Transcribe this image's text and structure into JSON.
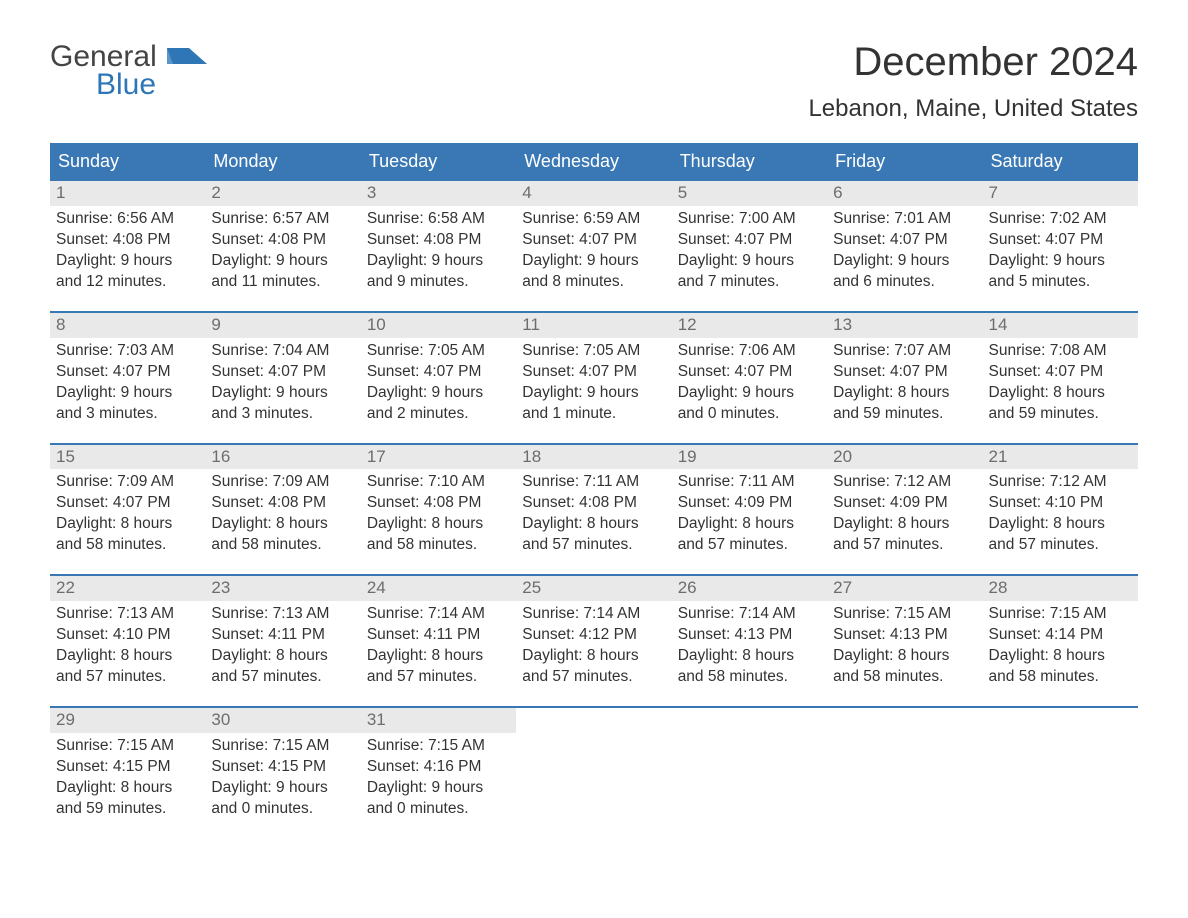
{
  "logo": {
    "top": "General",
    "bottom": "Blue",
    "top_color": "#444444",
    "bottom_color": "#2e76b6"
  },
  "title": "December 2024",
  "location": "Lebanon, Maine, United States",
  "colors": {
    "header_bg": "#3a78b5",
    "header_text": "#ffffff",
    "daynum_bg": "#e9e9e9",
    "daynum_text": "#6d6d6d",
    "rule": "#3a78b5",
    "body_text": "#333333",
    "background": "#ffffff"
  },
  "typography": {
    "title_fontsize": 40,
    "location_fontsize": 24,
    "dayname_fontsize": 18,
    "body_fontsize": 15.5
  },
  "day_names": [
    "Sunday",
    "Monday",
    "Tuesday",
    "Wednesday",
    "Thursday",
    "Friday",
    "Saturday"
  ],
  "weeks": [
    [
      {
        "n": "1",
        "sr": "Sunrise: 6:56 AM",
        "ss": "Sunset: 4:08 PM",
        "d1": "Daylight: 9 hours",
        "d2": "and 12 minutes."
      },
      {
        "n": "2",
        "sr": "Sunrise: 6:57 AM",
        "ss": "Sunset: 4:08 PM",
        "d1": "Daylight: 9 hours",
        "d2": "and 11 minutes."
      },
      {
        "n": "3",
        "sr": "Sunrise: 6:58 AM",
        "ss": "Sunset: 4:08 PM",
        "d1": "Daylight: 9 hours",
        "d2": "and 9 minutes."
      },
      {
        "n": "4",
        "sr": "Sunrise: 6:59 AM",
        "ss": "Sunset: 4:07 PM",
        "d1": "Daylight: 9 hours",
        "d2": "and 8 minutes."
      },
      {
        "n": "5",
        "sr": "Sunrise: 7:00 AM",
        "ss": "Sunset: 4:07 PM",
        "d1": "Daylight: 9 hours",
        "d2": "and 7 minutes."
      },
      {
        "n": "6",
        "sr": "Sunrise: 7:01 AM",
        "ss": "Sunset: 4:07 PM",
        "d1": "Daylight: 9 hours",
        "d2": "and 6 minutes."
      },
      {
        "n": "7",
        "sr": "Sunrise: 7:02 AM",
        "ss": "Sunset: 4:07 PM",
        "d1": "Daylight: 9 hours",
        "d2": "and 5 minutes."
      }
    ],
    [
      {
        "n": "8",
        "sr": "Sunrise: 7:03 AM",
        "ss": "Sunset: 4:07 PM",
        "d1": "Daylight: 9 hours",
        "d2": "and 3 minutes."
      },
      {
        "n": "9",
        "sr": "Sunrise: 7:04 AM",
        "ss": "Sunset: 4:07 PM",
        "d1": "Daylight: 9 hours",
        "d2": "and 3 minutes."
      },
      {
        "n": "10",
        "sr": "Sunrise: 7:05 AM",
        "ss": "Sunset: 4:07 PM",
        "d1": "Daylight: 9 hours",
        "d2": "and 2 minutes."
      },
      {
        "n": "11",
        "sr": "Sunrise: 7:05 AM",
        "ss": "Sunset: 4:07 PM",
        "d1": "Daylight: 9 hours",
        "d2": "and 1 minute."
      },
      {
        "n": "12",
        "sr": "Sunrise: 7:06 AM",
        "ss": "Sunset: 4:07 PM",
        "d1": "Daylight: 9 hours",
        "d2": "and 0 minutes."
      },
      {
        "n": "13",
        "sr": "Sunrise: 7:07 AM",
        "ss": "Sunset: 4:07 PM",
        "d1": "Daylight: 8 hours",
        "d2": "and 59 minutes."
      },
      {
        "n": "14",
        "sr": "Sunrise: 7:08 AM",
        "ss": "Sunset: 4:07 PM",
        "d1": "Daylight: 8 hours",
        "d2": "and 59 minutes."
      }
    ],
    [
      {
        "n": "15",
        "sr": "Sunrise: 7:09 AM",
        "ss": "Sunset: 4:07 PM",
        "d1": "Daylight: 8 hours",
        "d2": "and 58 minutes."
      },
      {
        "n": "16",
        "sr": "Sunrise: 7:09 AM",
        "ss": "Sunset: 4:08 PM",
        "d1": "Daylight: 8 hours",
        "d2": "and 58 minutes."
      },
      {
        "n": "17",
        "sr": "Sunrise: 7:10 AM",
        "ss": "Sunset: 4:08 PM",
        "d1": "Daylight: 8 hours",
        "d2": "and 58 minutes."
      },
      {
        "n": "18",
        "sr": "Sunrise: 7:11 AM",
        "ss": "Sunset: 4:08 PM",
        "d1": "Daylight: 8 hours",
        "d2": "and 57 minutes."
      },
      {
        "n": "19",
        "sr": "Sunrise: 7:11 AM",
        "ss": "Sunset: 4:09 PM",
        "d1": "Daylight: 8 hours",
        "d2": "and 57 minutes."
      },
      {
        "n": "20",
        "sr": "Sunrise: 7:12 AM",
        "ss": "Sunset: 4:09 PM",
        "d1": "Daylight: 8 hours",
        "d2": "and 57 minutes."
      },
      {
        "n": "21",
        "sr": "Sunrise: 7:12 AM",
        "ss": "Sunset: 4:10 PM",
        "d1": "Daylight: 8 hours",
        "d2": "and 57 minutes."
      }
    ],
    [
      {
        "n": "22",
        "sr": "Sunrise: 7:13 AM",
        "ss": "Sunset: 4:10 PM",
        "d1": "Daylight: 8 hours",
        "d2": "and 57 minutes."
      },
      {
        "n": "23",
        "sr": "Sunrise: 7:13 AM",
        "ss": "Sunset: 4:11 PM",
        "d1": "Daylight: 8 hours",
        "d2": "and 57 minutes."
      },
      {
        "n": "24",
        "sr": "Sunrise: 7:14 AM",
        "ss": "Sunset: 4:11 PM",
        "d1": "Daylight: 8 hours",
        "d2": "and 57 minutes."
      },
      {
        "n": "25",
        "sr": "Sunrise: 7:14 AM",
        "ss": "Sunset: 4:12 PM",
        "d1": "Daylight: 8 hours",
        "d2": "and 57 minutes."
      },
      {
        "n": "26",
        "sr": "Sunrise: 7:14 AM",
        "ss": "Sunset: 4:13 PM",
        "d1": "Daylight: 8 hours",
        "d2": "and 58 minutes."
      },
      {
        "n": "27",
        "sr": "Sunrise: 7:15 AM",
        "ss": "Sunset: 4:13 PM",
        "d1": "Daylight: 8 hours",
        "d2": "and 58 minutes."
      },
      {
        "n": "28",
        "sr": "Sunrise: 7:15 AM",
        "ss": "Sunset: 4:14 PM",
        "d1": "Daylight: 8 hours",
        "d2": "and 58 minutes."
      }
    ],
    [
      {
        "n": "29",
        "sr": "Sunrise: 7:15 AM",
        "ss": "Sunset: 4:15 PM",
        "d1": "Daylight: 8 hours",
        "d2": "and 59 minutes."
      },
      {
        "n": "30",
        "sr": "Sunrise: 7:15 AM",
        "ss": "Sunset: 4:15 PM",
        "d1": "Daylight: 9 hours",
        "d2": "and 0 minutes."
      },
      {
        "n": "31",
        "sr": "Sunrise: 7:15 AM",
        "ss": "Sunset: 4:16 PM",
        "d1": "Daylight: 9 hours",
        "d2": "and 0 minutes."
      },
      {
        "empty": true
      },
      {
        "empty": true
      },
      {
        "empty": true
      },
      {
        "empty": true
      }
    ]
  ]
}
